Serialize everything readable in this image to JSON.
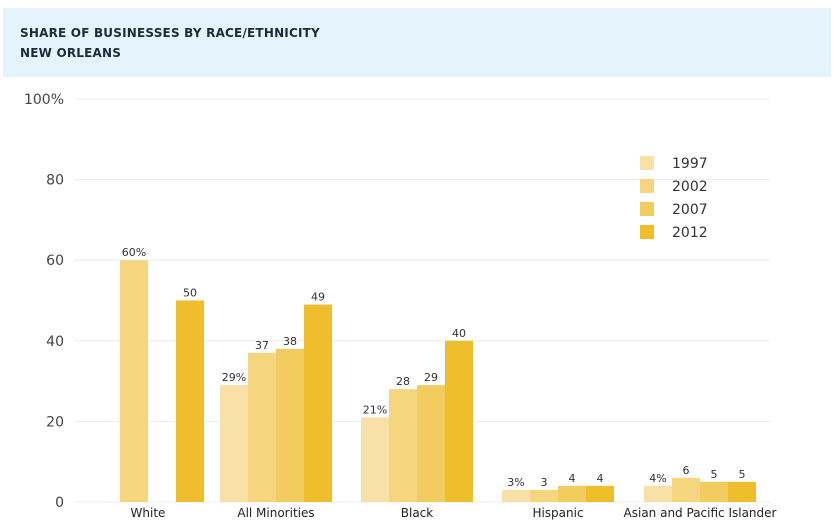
{
  "header": {
    "title": "SHARE OF BUSINESSES BY RACE/ETHNICITY",
    "subtitle": "NEW ORLEANS"
  },
  "colors": {
    "1997": "#f9e0a6",
    "2002": "#f5d67f",
    "2007": "#f2cc5e",
    "2012": "#efbe2c",
    "grid": "#ececec",
    "background": "#ffffff",
    "title_band": "#e5f3fc"
  },
  "chart_data": {
    "type": "bar",
    "title": "SHARE OF BUSINESSES BY RACE/ETHNICITY",
    "subtitle": "NEW ORLEANS",
    "categories": [
      "White",
      "All Minorities",
      "Black",
      "Hispanic",
      "Asian and Pacific Islander"
    ],
    "series": [
      {
        "name": "1997",
        "values": [
          null,
          29,
          21,
          3,
          4
        ],
        "labels": [
          "",
          "29%",
          "21%",
          "3%",
          "4%"
        ]
      },
      {
        "name": "2002",
        "values": [
          60,
          37,
          28,
          3,
          6
        ],
        "labels": [
          "60%",
          "37",
          "28",
          "3",
          "6"
        ]
      },
      {
        "name": "2007",
        "values": [
          null,
          38,
          29,
          4,
          5
        ],
        "labels": [
          "",
          "38",
          "29",
          "4",
          "5"
        ]
      },
      {
        "name": "2012",
        "values": [
          50,
          49,
          40,
          4,
          5
        ],
        "labels": [
          "50",
          "49",
          "40",
          "4",
          "5"
        ]
      }
    ],
    "ylim": [
      0,
      100
    ],
    "yticks": [
      0,
      20,
      40,
      60,
      80,
      100
    ],
    "ytick_labels": [
      "0",
      "20",
      "40",
      "60",
      "80",
      "100%"
    ],
    "xlabel": "",
    "ylabel": "",
    "grid": true,
    "legend_position": "top-right"
  }
}
